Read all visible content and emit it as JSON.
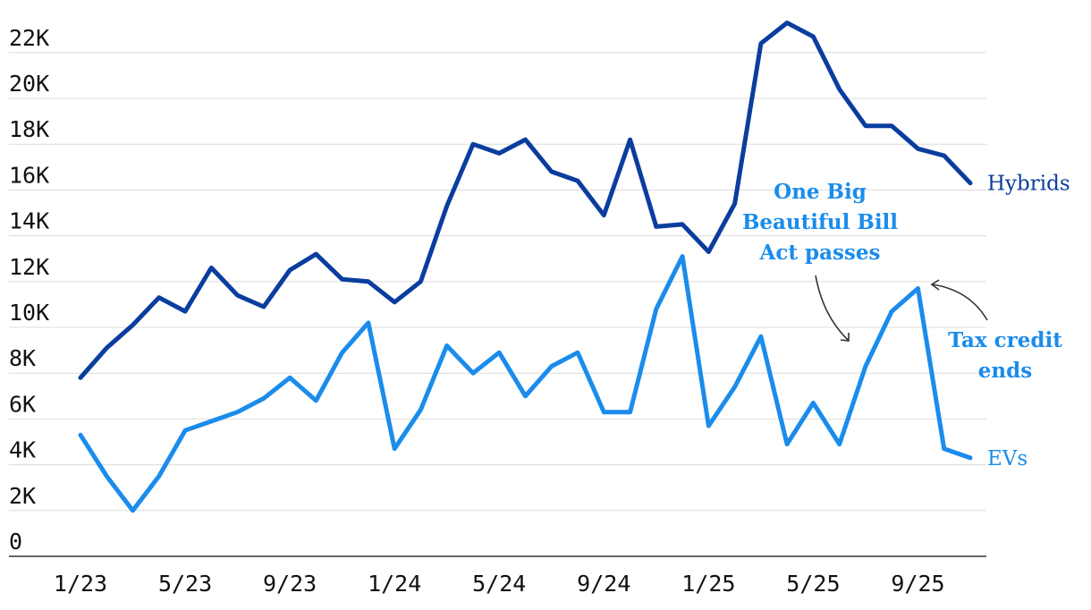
{
  "chart_data": {
    "type": "line",
    "x": [
      "1/23",
      "2/23",
      "3/23",
      "4/23",
      "5/23",
      "6/23",
      "7/23",
      "8/23",
      "9/23",
      "10/23",
      "11/23",
      "12/23",
      "1/24",
      "2/24",
      "3/24",
      "4/24",
      "5/24",
      "6/24",
      "7/24",
      "8/24",
      "9/24",
      "10/24",
      "11/24",
      "12/24",
      "1/25",
      "2/25",
      "3/25",
      "4/25",
      "5/25",
      "6/25",
      "7/25",
      "8/25",
      "9/25",
      "10/25",
      "11/25"
    ],
    "x_tick_labels": [
      "1/23",
      "5/23",
      "9/23",
      "1/24",
      "5/24",
      "9/24",
      "1/25",
      "5/25",
      "9/25"
    ],
    "y_tick_labels": [
      "0",
      "2K",
      "4K",
      "6K",
      "8K",
      "10K",
      "12K",
      "14K",
      "16K",
      "18K",
      "20K",
      "22K"
    ],
    "ylim": [
      0,
      23500
    ],
    "grid": true,
    "series": [
      {
        "name": "Hybrids",
        "color": "#0a3d9e",
        "values": [
          7800,
          9100,
          10100,
          11300,
          10700,
          12600,
          11400,
          10900,
          12500,
          13200,
          12100,
          12000,
          11100,
          12000,
          15300,
          18000,
          17600,
          18200,
          16800,
          16400,
          14900,
          18200,
          14400,
          14500,
          13300,
          15400,
          22400,
          23300,
          22700,
          20400,
          18800,
          18800,
          17800,
          17500,
          16300
        ]
      },
      {
        "name": "EVs",
        "color": "#1a8ceb",
        "values": [
          5300,
          3500,
          2000,
          3500,
          5500,
          5900,
          6300,
          6900,
          7800,
          6800,
          8900,
          10200,
          4700,
          6400,
          9200,
          8000,
          8900,
          7000,
          8300,
          8900,
          6300,
          6300,
          10800,
          13100,
          5700,
          7400,
          9600,
          4900,
          6700,
          4900,
          8300,
          10700,
          11700,
          4700,
          4300
        ]
      }
    ],
    "annotations": [
      {
        "id": "obbb",
        "text_lines": [
          "One Big",
          "Beautiful Bill",
          "Act passes"
        ],
        "color": "#1a8ceb"
      },
      {
        "id": "taxcredit",
        "text_lines": [
          "Tax credit",
          "ends"
        ],
        "color": "#1a8ceb"
      }
    ]
  }
}
